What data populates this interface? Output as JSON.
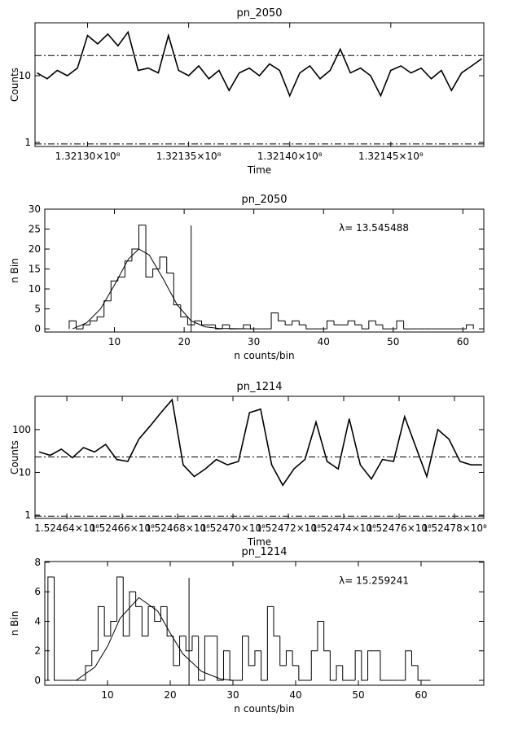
{
  "chart_data": [
    {
      "type": "line",
      "title": "pn_2050",
      "xlabel": "Time",
      "ylabel": "Counts",
      "ylog": true,
      "color": "#000000",
      "xlim": [
        132127400,
        132149600
      ],
      "ylim": [
        0.87,
        62
      ],
      "xticks": [
        {
          "value": 132130000,
          "label": "1.32130×10⁸"
        },
        {
          "value": 132135000,
          "label": "1.32135×10⁸"
        },
        {
          "value": 132140000,
          "label": "1.32140×10⁸"
        },
        {
          "value": 132145000,
          "label": "1.32145×10⁸"
        }
      ],
      "yticks": [
        1,
        10
      ],
      "x": [
        132127500,
        132128000,
        132128500,
        132129000,
        132129500,
        132130000,
        132130500,
        132131000,
        132131500,
        132132000,
        132132500,
        132133000,
        132133500,
        132134000,
        132134500,
        132135000,
        132135500,
        132136000,
        132136500,
        132137000,
        132137500,
        132138000,
        132138500,
        132139000,
        132139500,
        132140000,
        132140500,
        132141000,
        132141500,
        132142000,
        132142500,
        132143000,
        132143500,
        132144000,
        132144500,
        132145000,
        132145500,
        132146000,
        132146500,
        132147000,
        132147500,
        132148000,
        132148500,
        132149000,
        132149500
      ],
      "values": [
        11,
        9,
        12,
        10,
        13,
        40,
        30,
        42,
        28,
        45,
        12,
        13,
        11,
        40,
        12,
        10,
        14,
        9,
        12,
        6,
        11,
        13,
        10,
        15,
        12,
        5,
        11,
        14,
        9,
        12,
        25,
        11,
        13,
        10,
        5,
        12,
        14,
        11,
        13,
        9,
        12,
        6,
        11,
        14,
        18
      ],
      "hlines": [
        20,
        0.95
      ]
    },
    {
      "type": "histogram",
      "title": "pn_2050",
      "xlabel": "n counts/bin",
      "ylabel": "n Bin",
      "color": "#000000",
      "annotation": "λ= 13.545488",
      "xlim": [
        0,
        63
      ],
      "ylim": [
        -0.8,
        30
      ],
      "xticks": [
        10,
        20,
        30,
        40,
        50,
        60
      ],
      "yticks": [
        0,
        5,
        10,
        15,
        20,
        25,
        30
      ],
      "bins": [
        3.5,
        4.5,
        5.5,
        6.5,
        7.5,
        8.5,
        9.5,
        10.5,
        11.5,
        12.5,
        13.5,
        14.5,
        15.5,
        16.5,
        17.5,
        18.5,
        19.5,
        20.5,
        21.5,
        22.5,
        23.5,
        24.5,
        25.5,
        26.5,
        27.5,
        28.5,
        29.5,
        30.5,
        31.5,
        32.5,
        33.5,
        34.5,
        35.5,
        36.5,
        37.5,
        38.5,
        39.5,
        40.5,
        41.5,
        42.5,
        43.5,
        44.5,
        45.5,
        46.5,
        47.5,
        48.5,
        49.5,
        50.5,
        51.5,
        52.5,
        53.5,
        54.5,
        55.5,
        56.5,
        57.5,
        58.5,
        59.5,
        60.5,
        61.5
      ],
      "values": [
        2,
        0,
        1,
        2,
        3,
        7,
        12,
        13,
        17,
        20,
        26,
        13,
        15,
        18,
        14,
        6,
        3,
        1,
        2,
        1,
        1,
        0,
        1,
        0,
        0,
        1,
        0,
        0,
        0,
        4,
        2,
        1,
        2,
        1,
        0,
        0,
        0,
        2,
        1,
        1,
        2,
        1,
        0,
        2,
        1,
        0,
        0,
        2,
        0,
        0,
        0,
        0,
        0,
        0,
        0,
        0,
        0,
        1
      ],
      "fit": {
        "x": [
          4,
          6,
          8,
          10,
          12,
          13.5,
          15,
          17,
          19,
          21,
          23,
          25,
          30
        ],
        "values": [
          0,
          1.5,
          5,
          11,
          17.5,
          20,
          18.5,
          12.5,
          6,
          2,
          0.5,
          0.1,
          0
        ]
      },
      "vline": 21
    },
    {
      "type": "line",
      "title": "pn_1214",
      "xlabel": "Time",
      "ylabel": "Counts",
      "ylog": true,
      "color": "#000000",
      "xlim": [
        152462850,
        152479060
      ],
      "ylim": [
        0.84,
        600
      ],
      "xticks": [
        {
          "value": 152464000,
          "label": "1.52464×10⁸"
        },
        {
          "value": 152466000,
          "label": "1.52466×10⁸"
        },
        {
          "value": 152468000,
          "label": "1.52468×10⁸"
        },
        {
          "value": 152470000,
          "label": "1.52470×10⁸"
        },
        {
          "value": 152472000,
          "label": "1.52472×10⁸"
        },
        {
          "value": 152474000,
          "label": "1.52474×10⁸"
        },
        {
          "value": 152476000,
          "label": "1.52476×10⁸"
        },
        {
          "value": 152478000,
          "label": "1.52478×10⁸"
        }
      ],
      "yticks": [
        1,
        10,
        100
      ],
      "x": [
        152463000,
        152463400,
        152463800,
        152464200,
        152464600,
        152465000,
        152465400,
        152465800,
        152466200,
        152466600,
        152467000,
        152467400,
        152467800,
        152468200,
        152468600,
        152469000,
        152469400,
        152469800,
        152470200,
        152470600,
        152471000,
        152471400,
        152471800,
        152472200,
        152472600,
        152473000,
        152473400,
        152473800,
        152474200,
        152474600,
        152475000,
        152475400,
        152475800,
        152476200,
        152476600,
        152477000,
        152477400,
        152477800,
        152478200,
        152478600,
        152479000
      ],
      "values": [
        30,
        25,
        35,
        22,
        38,
        30,
        45,
        20,
        18,
        60,
        120,
        250,
        500,
        15,
        8,
        12,
        20,
        15,
        18,
        250,
        300,
        15,
        5,
        12,
        20,
        150,
        18,
        12,
        180,
        15,
        7,
        20,
        18,
        200,
        40,
        8,
        100,
        60,
        18,
        15,
        15
      ],
      "hlines": [
        23,
        0.95
      ]
    },
    {
      "type": "histogram",
      "title": "pn_1214",
      "xlabel": "n counts/bin",
      "ylabel": "n Bin",
      "color": "#000000",
      "annotation": "λ= 15.259241",
      "xlim": [
        0,
        70
      ],
      "ylim": [
        -0.33,
        8.05
      ],
      "xticks": [
        10,
        20,
        30,
        40,
        50,
        60
      ],
      "yticks": [
        0,
        2,
        4,
        6,
        8
      ],
      "bins": [
        0.5,
        1.5,
        2.5,
        3.5,
        4.5,
        5.5,
        6.5,
        7.5,
        8.5,
        9.5,
        10.5,
        11.5,
        12.5,
        13.5,
        14.5,
        15.5,
        16.5,
        17.5,
        18.5,
        19.5,
        20.5,
        21.5,
        22.5,
        23.5,
        24.5,
        25.5,
        26.5,
        27.5,
        28.5,
        29.5,
        30.5,
        31.5,
        32.5,
        33.5,
        34.5,
        35.5,
        36.5,
        37.5,
        38.5,
        39.5,
        40.5,
        41.5,
        42.5,
        43.5,
        44.5,
        45.5,
        46.5,
        47.5,
        48.5,
        49.5,
        50.5,
        51.5,
        52.5,
        53.5,
        54.5,
        55.5,
        56.5,
        57.5,
        58.5,
        59.5,
        60.5,
        61.5
      ],
      "values": [
        7,
        0,
        0,
        0,
        0,
        0,
        1,
        2,
        5,
        3,
        4,
        7,
        3,
        6,
        5,
        3,
        5,
        4,
        5,
        3,
        1,
        3,
        2,
        3,
        0,
        3,
        3,
        0,
        2,
        0,
        0,
        3,
        1,
        2,
        0,
        5,
        3,
        1,
        2,
        1,
        0,
        0,
        2,
        4,
        2,
        0,
        1,
        0,
        0,
        2,
        0,
        2,
        2,
        0,
        0,
        0,
        0,
        2,
        1,
        0,
        0
      ],
      "fit": {
        "x": [
          5,
          8,
          10,
          12,
          15,
          18,
          20,
          22,
          25,
          28,
          30
        ],
        "values": [
          0,
          0.9,
          2.3,
          4.2,
          5.6,
          4.7,
          3.2,
          1.8,
          0.6,
          0.1,
          0
        ]
      },
      "vline": 23
    }
  ]
}
